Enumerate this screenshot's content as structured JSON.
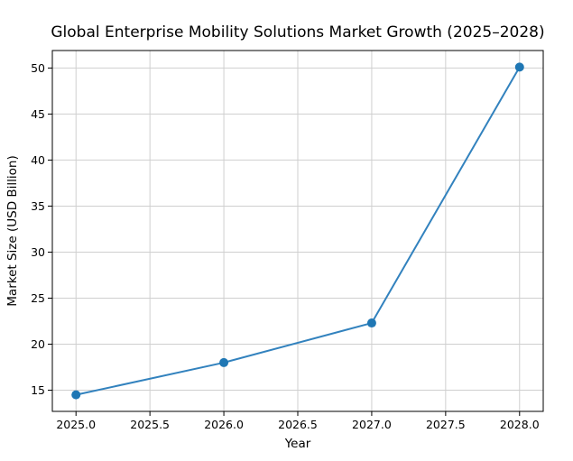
{
  "chart_data": {
    "type": "line",
    "title": "Global Enterprise Mobility Solutions Market Growth (2025–2028)",
    "xlabel": "Year",
    "ylabel": "Market Size (USD Billion)",
    "x": [
      2025,
      2026,
      2027,
      2028
    ],
    "series": [
      {
        "values": [
          14.5,
          18.0,
          22.3,
          50.1
        ]
      }
    ],
    "xlim": [
      2024.84,
      2028.16
    ],
    "ylim": [
      12.7,
      51.9
    ],
    "xticks": [
      2025.0,
      2025.5,
      2026.0,
      2026.5,
      2027.0,
      2027.5,
      2028.0
    ],
    "xtick_labels": [
      "2025.0",
      "2025.5",
      "2026.0",
      "2026.5",
      "2027.0",
      "2027.5",
      "2028.0"
    ],
    "yticks": [
      15,
      20,
      25,
      30,
      35,
      40,
      45,
      50
    ],
    "ytick_labels": [
      "15",
      "20",
      "25",
      "30",
      "35",
      "40",
      "45",
      "50"
    ],
    "grid": true,
    "legend": "none",
    "colors": {
      "line": "#3282be",
      "marker": "#1f77b4",
      "grid": "#cfcfcf",
      "axes": "#000000"
    }
  }
}
